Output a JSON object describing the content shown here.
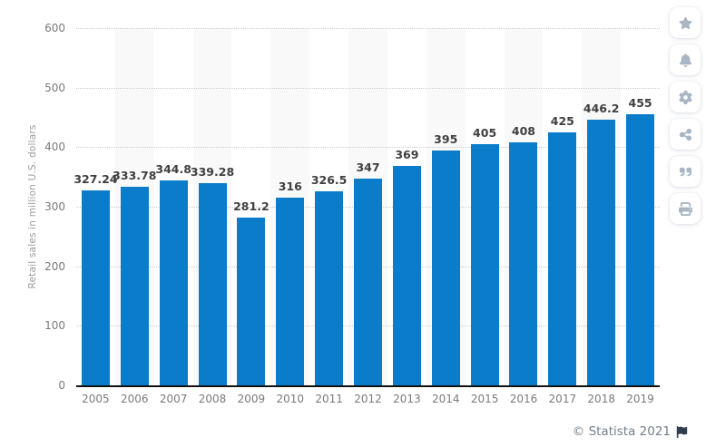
{
  "chart_data": {
    "type": "bar",
    "title": "",
    "categories": [
      "2005",
      "2006",
      "2007",
      "2008",
      "2009",
      "2010",
      "2011",
      "2012",
      "2013",
      "2014",
      "2015",
      "2016",
      "2017",
      "2018",
      "2019"
    ],
    "values": [
      327.24,
      333.78,
      344.8,
      339.28,
      281.2,
      316,
      326.5,
      347,
      369,
      395,
      405,
      408,
      425,
      446.2,
      455
    ],
    "value_labels": [
      "327.24",
      "333.78",
      "344.8",
      "339.28",
      "281.2",
      "316",
      "326.5",
      "347",
      "369",
      "395",
      "405",
      "408",
      "425",
      "446.2",
      "455"
    ],
    "xlabel": "",
    "ylabel": "Retail sales in million U.S. dollars",
    "ylim": [
      0,
      600
    ],
    "yticks": [
      0,
      100,
      200,
      300,
      400,
      500,
      600
    ],
    "grid": "horizontal-dotted",
    "legend": "none",
    "background_stripes": "alternating-columns"
  },
  "toolbar": {
    "buttons": [
      {
        "label": "favorite",
        "icon": "star-icon"
      },
      {
        "label": "alerts",
        "icon": "bell-icon"
      },
      {
        "label": "settings",
        "icon": "gear-icon"
      },
      {
        "label": "share",
        "icon": "share-icon"
      },
      {
        "label": "cite",
        "icon": "quote-icon"
      },
      {
        "label": "print",
        "icon": "print-icon"
      }
    ]
  },
  "footer": {
    "copyright": "© Statista 2021",
    "flag": "flag-icon"
  },
  "colors": {
    "bar": "#0a7cc9",
    "value_label": "#3f3f3f",
    "axis_tick_label": "#7a7a7a",
    "y_title": "#9b9b9b",
    "gridline": "#cccccc",
    "stripe": "#f9f9f9",
    "axis_line": "#111111",
    "icon": "#a9b5c3",
    "footer_text": "#72808e",
    "flag": "#2f3d4e"
  }
}
